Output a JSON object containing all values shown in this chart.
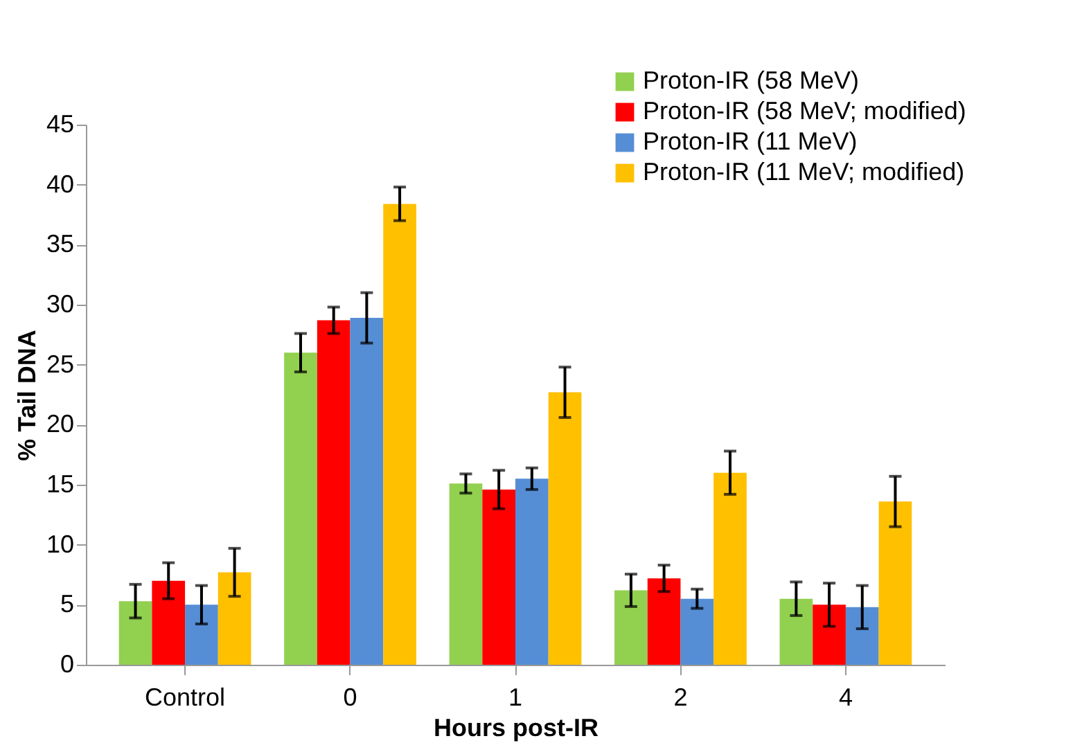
{
  "chart_data": {
    "type": "bar",
    "xlabel": "Hours post-IR",
    "ylabel": "% Tail DNA",
    "categories": [
      "Control",
      "0",
      "1",
      "2",
      "4"
    ],
    "series": [
      {
        "name": "Proton-IR (58 MeV)",
        "color": "#92d050",
        "values": [
          5.3,
          26.0,
          15.1,
          6.2,
          5.5
        ],
        "errors": [
          1.4,
          1.6,
          0.8,
          1.35,
          1.4
        ]
      },
      {
        "name": "Proton-IR (58 MeV; modified)",
        "color": "#ff0000",
        "values": [
          7.0,
          28.7,
          14.6,
          7.2,
          5.0
        ],
        "errors": [
          1.5,
          1.1,
          1.6,
          1.1,
          1.8
        ]
      },
      {
        "name": "Proton-IR (11 MeV)",
        "color": "#558ed5",
        "values": [
          5.0,
          28.9,
          15.5,
          5.5,
          4.8
        ],
        "errors": [
          1.6,
          2.1,
          0.9,
          0.8,
          1.8
        ]
      },
      {
        "name": "Proton-IR (11 MeV; modified)",
        "color": "#ffc000",
        "values": [
          7.7,
          38.4,
          22.7,
          16.0,
          13.6
        ],
        "errors": [
          2.0,
          1.4,
          2.1,
          1.8,
          2.1
        ]
      }
    ],
    "ylim": [
      0,
      45
    ],
    "yticks": [
      0,
      5,
      10,
      15,
      20,
      25,
      30,
      35,
      40,
      45
    ],
    "grid": false,
    "legend": "top right"
  }
}
